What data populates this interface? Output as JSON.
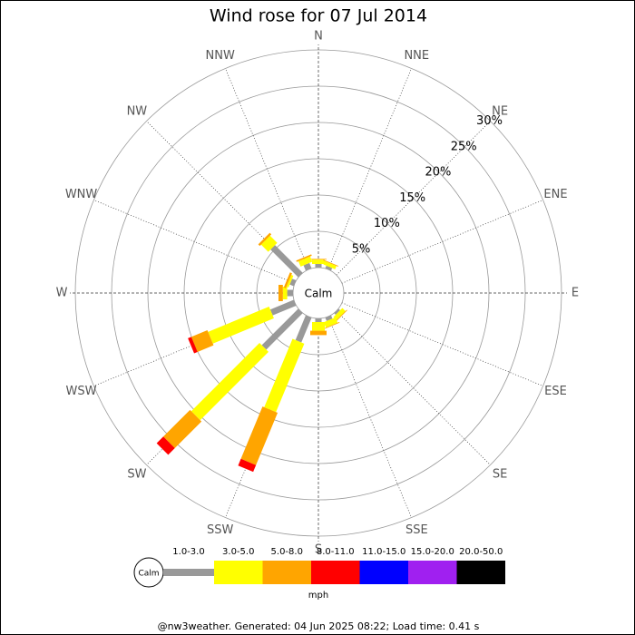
{
  "chart_data": {
    "type": "windrose",
    "title": "Wind rose for 07 Jul 2014",
    "categories": [
      "N",
      "NNE",
      "NE",
      "ENE",
      "E",
      "ESE",
      "SE",
      "SSE",
      "S",
      "SSW",
      "SW",
      "WSW",
      "W",
      "WNW",
      "NW",
      "NNW"
    ],
    "calm_label": "Calm",
    "unit_label": "mph",
    "footer": "@nw3weather. Generated: 04 Jun 2025 08:22; Load time: 0.41 s",
    "ylim": [
      0,
      30
    ],
    "yticks": [
      {
        "value": 5,
        "label": "5%"
      },
      {
        "value": 10,
        "label": "10%"
      },
      {
        "value": 15,
        "label": "15%"
      },
      {
        "value": 20,
        "label": "20%"
      },
      {
        "value": 25,
        "label": "25%"
      },
      {
        "value": 30,
        "label": "30%"
      }
    ],
    "series": [
      {
        "name": "1.0-3.0",
        "color": "#999999",
        "values": [
          0.5,
          0.4,
          0,
          0,
          0,
          0,
          0.3,
          0.5,
          0.5,
          3.7,
          7.1,
          3.5,
          0.8,
          0.6,
          5.4,
          0.8
        ]
      },
      {
        "name": "3.0-5.0",
        "color": "#ffff00",
        "values": [
          0.6,
          0.5,
          0,
          0,
          0,
          0,
          0.6,
          0.8,
          1.2,
          10.2,
          13.3,
          9.1,
          0.6,
          0.3,
          1.4,
          0.8
        ]
      },
      {
        "name": "5.0-8.0",
        "color": "#ffa500",
        "values": [
          0.1,
          0.1,
          0,
          0,
          0,
          0,
          0.1,
          0.1,
          0.6,
          7.8,
          5.2,
          2.4,
          0.6,
          0.3,
          0.3,
          0.2
        ]
      },
      {
        "name": "8.0-11.0",
        "color": "#ff0000",
        "values": [
          0,
          0,
          0,
          0,
          0,
          0,
          0,
          0,
          0,
          1.0,
          1.3,
          0.5,
          0,
          0,
          0,
          0
        ]
      },
      {
        "name": "11.0-15.0",
        "color": "#0000ff",
        "values": [
          0,
          0,
          0,
          0,
          0,
          0,
          0,
          0,
          0,
          0,
          0,
          0,
          0,
          0,
          0,
          0
        ]
      },
      {
        "name": "15.0-20.0",
        "color": "#a020f0",
        "values": [
          0,
          0,
          0,
          0,
          0,
          0,
          0,
          0,
          0,
          0,
          0,
          0,
          0,
          0,
          0,
          0
        ]
      },
      {
        "name": "20.0-50.0",
        "color": "#000000",
        "values": [
          0,
          0,
          0,
          0,
          0,
          0,
          0,
          0,
          0,
          0,
          0,
          0,
          0,
          0,
          0,
          0
        ]
      }
    ]
  }
}
